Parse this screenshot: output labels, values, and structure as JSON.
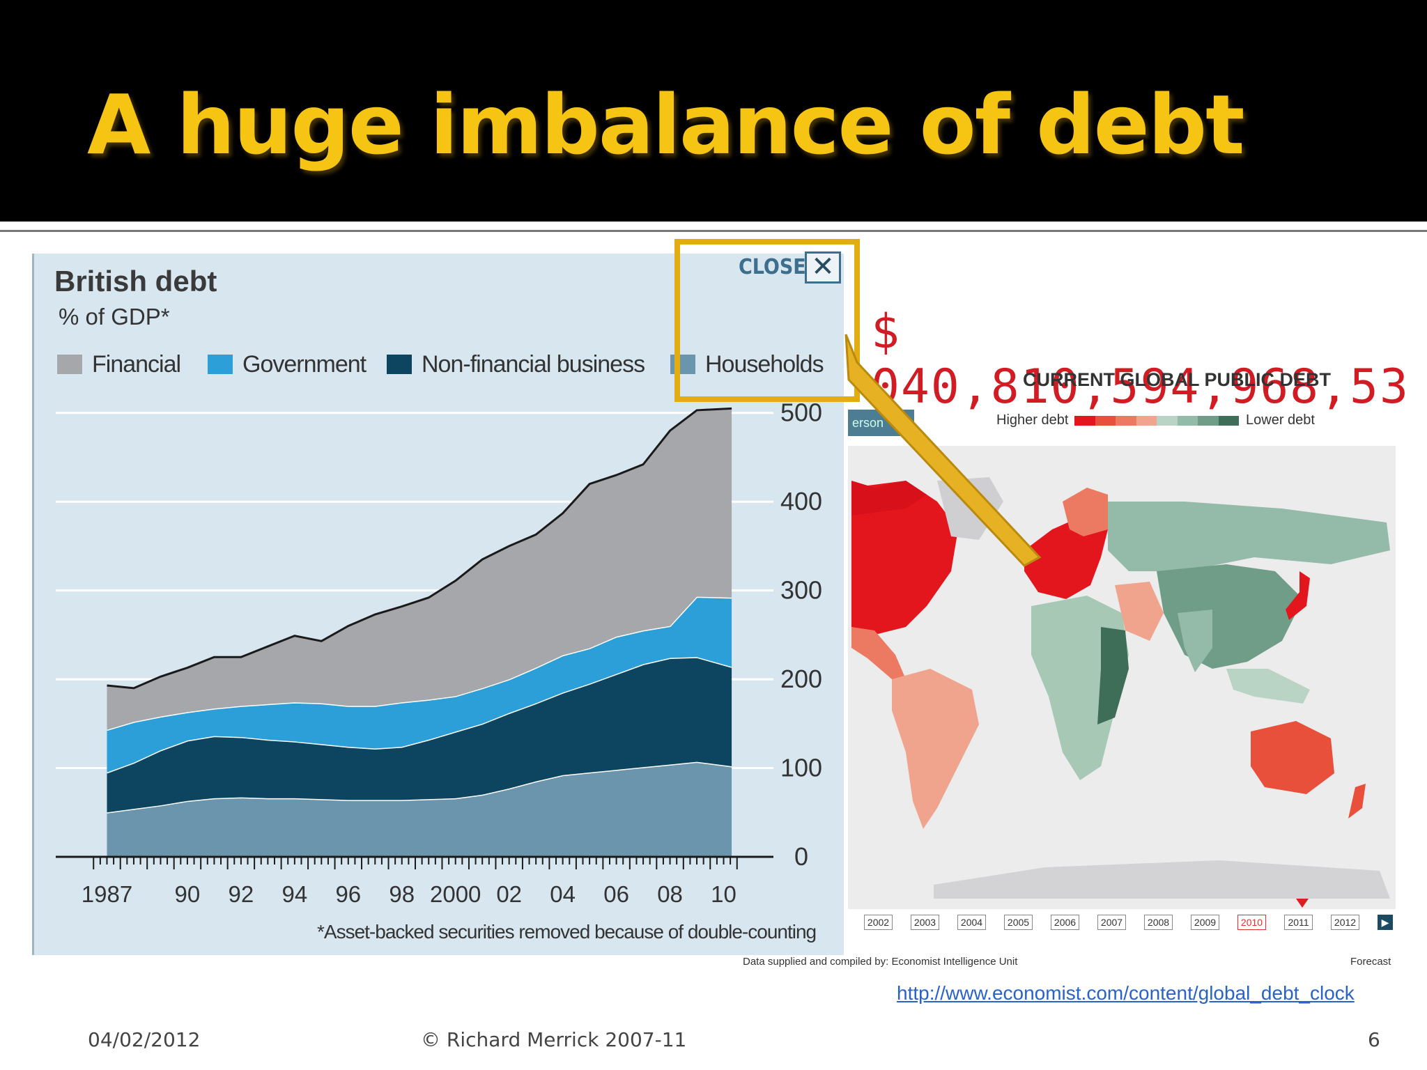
{
  "slide": {
    "title": "A huge imbalance of debt",
    "date": "04/02/2012",
    "copyright": "© Richard Merrick 2007-11",
    "page_number": "6",
    "link": "http://www.economist.com/content/global_debt_clock"
  },
  "colors": {
    "title": "#f6c514",
    "financial": "#a6a7ab",
    "government": "#2c9fd8",
    "non_financial": "#0d4561",
    "households": "#6b95ac",
    "callout": "#e2ac13",
    "clock_red": "#d11c24"
  },
  "chart_data": {
    "type": "area",
    "title": "British debt",
    "subtitle": "% of GDP*",
    "note": "*Asset-backed securities removed because of double-counting",
    "x_ticks": [
      "1987",
      "90",
      "92",
      "94",
      "96",
      "98",
      "2000",
      "02",
      "04",
      "06",
      "08",
      "10"
    ],
    "x_tick_values": [
      1987,
      1990,
      1992,
      1994,
      1996,
      1998,
      2000,
      2002,
      2004,
      2006,
      2008,
      2010
    ],
    "y_ticks": [
      "500",
      "400",
      "300",
      "200",
      "100",
      "0"
    ],
    "y_tick_values": [
      500,
      400,
      300,
      200,
      100,
      0
    ],
    "xlim": [
      1986,
      2011
    ],
    "ylim": [
      0,
      510
    ],
    "stacking": "stacked",
    "grid": true,
    "legend_position": "top",
    "x": [
      1987,
      1988,
      1989,
      1990,
      1991,
      1992,
      1993,
      1994,
      1995,
      1996,
      1997,
      1998,
      1999,
      2000,
      2001,
      2002,
      2003,
      2004,
      2005,
      2006,
      2007,
      2008,
      2009,
      2010.3
    ],
    "series": [
      {
        "name": "Households",
        "values": [
          50,
          54,
          58,
          63,
          66,
          67,
          66,
          66,
          65,
          64,
          64,
          64,
          65,
          66,
          70,
          77,
          85,
          92,
          95,
          98,
          101,
          104,
          107,
          102
        ]
      },
      {
        "name": "Non-financial business",
        "values": [
          45,
          52,
          62,
          68,
          70,
          68,
          66,
          64,
          62,
          60,
          58,
          60,
          67,
          75,
          80,
          85,
          88,
          93,
          100,
          108,
          116,
          120,
          118,
          112
        ]
      },
      {
        "name": "Government",
        "values": [
          48,
          46,
          38,
          32,
          31,
          35,
          40,
          44,
          46,
          46,
          48,
          50,
          45,
          40,
          40,
          38,
          40,
          42,
          40,
          42,
          38,
          36,
          68,
          78
        ]
      },
      {
        "name": "Financial",
        "values": [
          50,
          38,
          45,
          50,
          58,
          55,
          65,
          75,
          70,
          90,
          103,
          108,
          115,
          130,
          145,
          150,
          150,
          160,
          185,
          182,
          187,
          220,
          210,
          213
        ]
      }
    ]
  },
  "map_panel": {
    "clock_value": "$ 040,810,594,968,53",
    "clock_caption": "CURRENT GLOBAL PUBLIC DEBT",
    "scale_high": "Higher debt",
    "scale_low": "Lower debt",
    "tab_fragment": "erson",
    "scale_colors": [
      "#e3161e",
      "#e8503c",
      "#ec7a62",
      "#f0a48e",
      "#b9d3c4",
      "#94bba9",
      "#6f9d88",
      "#3f6e58"
    ],
    "years": [
      "2002",
      "2003",
      "2004",
      "2005",
      "2006",
      "2007",
      "2008",
      "2009",
      "2010",
      "2011",
      "2012"
    ],
    "active_year": "2010",
    "source": "Data supplied and compiled by: Economist Intelligence Unit",
    "forecast": "Forecast",
    "close_label": "CLOSE",
    "close_icon": "x-icon"
  }
}
